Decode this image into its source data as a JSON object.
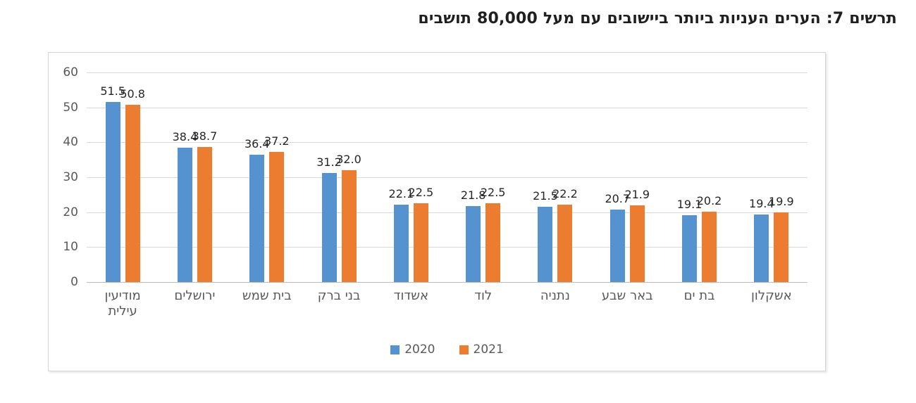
{
  "title": "תרשים 7: הערים העניות ביותר ביישובים עם מעל 80,000 תושבים",
  "colors": {
    "series_2020": "#5593d0",
    "series_2021": "#ec7c30",
    "gridline": "#d9d9d9",
    "axis_line": "#bdbdbd",
    "tick_label": "#595959",
    "value_label": "#262626",
    "title_text": "#1f1f1f",
    "box_border": "#d6d6d6",
    "background": "#ffffff"
  },
  "legend": [
    {
      "label": "2020",
      "color": "#5593d0"
    },
    {
      "label": "2021",
      "color": "#ec7c30"
    }
  ],
  "chart_data": {
    "type": "bar",
    "title": "תרשים 7: הערים העניות ביותר ביישובים עם מעל 80,000 תושבים",
    "categories": [
      "מודיעין עילית",
      "ירושלים",
      "בית שמש",
      "בני ברק",
      "אשדוד",
      "לוד",
      "נתניה",
      "באר שבע",
      "בת ים",
      "אשקלון"
    ],
    "series": [
      {
        "name": "2020",
        "color": "#5593d0",
        "values": [
          51.5,
          38.4,
          36.4,
          31.2,
          22.1,
          21.8,
          21.5,
          20.7,
          19.1,
          19.4
        ]
      },
      {
        "name": "2021",
        "color": "#ec7c30",
        "values": [
          50.8,
          38.7,
          37.2,
          32.0,
          22.5,
          22.5,
          22.2,
          21.9,
          20.2,
          19.9
        ]
      }
    ],
    "xlabel": "",
    "ylabel": "",
    "ylim": [
      0,
      60
    ],
    "yticks": [
      0,
      10,
      20,
      30,
      40,
      50,
      60
    ],
    "grid": true,
    "value_labels": true,
    "value_label_decimals": 1,
    "legend_position": "bottom-center"
  }
}
